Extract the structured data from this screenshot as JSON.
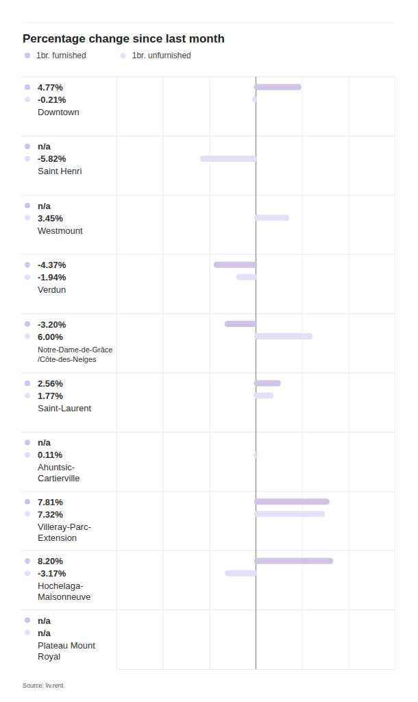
{
  "chart_data": {
    "type": "bar",
    "orientation": "horizontal",
    "title": "Percentage change since last month",
    "source": "Source: liv.rent",
    "categories": [
      "Downtown",
      "Saint Henri",
      "Westmount",
      "Verdun",
      "Notre-Dame-de-Grâce\n/Côte-des-Neiges",
      "Saint-Laurent",
      "Ahuntsic-\nCartierville",
      "Villeray-Parc-\nExtension",
      "Hochelaga-\nMaisonneuve",
      "Plateau Mount\nRoyal"
    ],
    "series": [
      {
        "name": "1br. furnished",
        "color": "#cfc4e5",
        "values": [
          4.77,
          null,
          null,
          -4.37,
          -3.2,
          2.56,
          null,
          7.81,
          8.2,
          null
        ],
        "value_labels": [
          "4.77%",
          "n/a",
          "n/a",
          "-4.37%",
          "-3.20%",
          "2.56%",
          "n/a",
          "7.81%",
          "8.20%",
          "n/a"
        ]
      },
      {
        "name": "1br. unfurnished",
        "color": "#e4dff5",
        "values": [
          -0.21,
          -5.82,
          3.45,
          -1.94,
          6.0,
          1.77,
          0.11,
          7.32,
          -3.17,
          null
        ],
        "value_labels": [
          "-0.21%",
          "-5.82%",
          "3.45%",
          "-1.94%",
          "6.00%",
          "1.77%",
          "0.11%",
          "7.32%",
          "-3.17%",
          "n/a"
        ]
      }
    ],
    "xlim": [
      -15,
      15
    ],
    "xticks": [
      -15,
      -10,
      -5,
      0,
      5,
      10,
      15
    ],
    "tick_labels": false,
    "grid": true,
    "legend": "top-left",
    "data_labels": true
  }
}
